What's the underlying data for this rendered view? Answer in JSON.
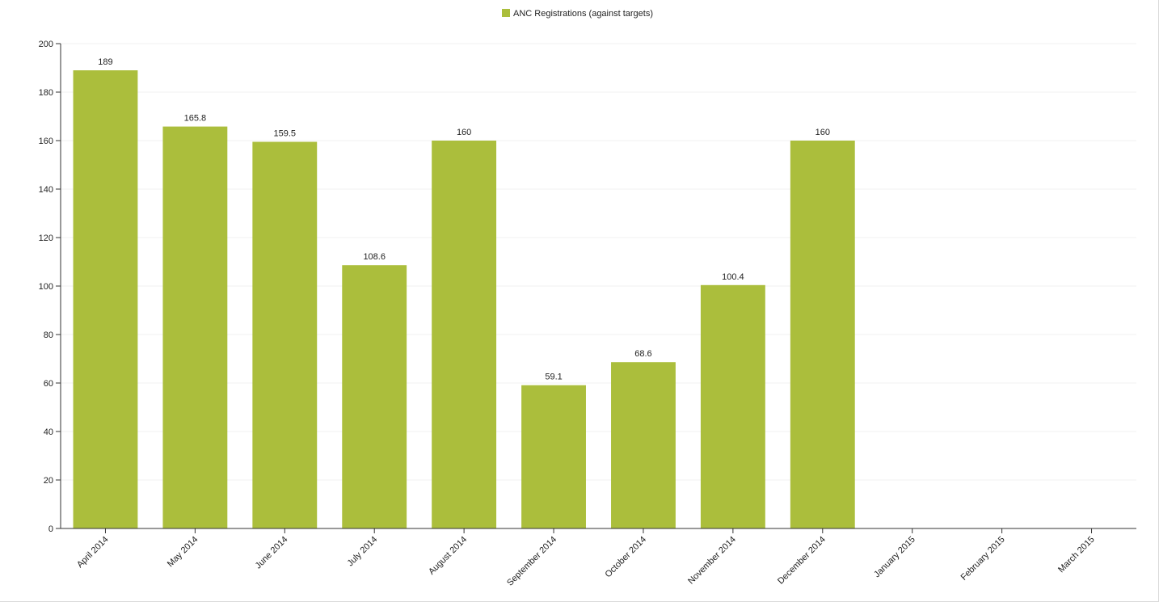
{
  "chart_data": {
    "type": "bar",
    "title": "",
    "xlabel": "",
    "ylabel": "",
    "ylim": [
      0,
      200
    ],
    "y_ticks": [
      0,
      20,
      40,
      60,
      80,
      100,
      120,
      140,
      160,
      180,
      200
    ],
    "grid": true,
    "legend_position": "top-center",
    "categories": [
      "April 2014",
      "May 2014",
      "June 2014",
      "July 2014",
      "August 2014",
      "September 2014",
      "October 2014",
      "November 2014",
      "December 2014",
      "January 2015",
      "February 2015",
      "March 2015"
    ],
    "series": [
      {
        "name": "ANC Registrations (against targets)",
        "color": "#abbe3c",
        "values": [
          189,
          165.8,
          159.5,
          108.6,
          160,
          59.1,
          68.6,
          100.4,
          160,
          null,
          null,
          null
        ]
      }
    ]
  }
}
